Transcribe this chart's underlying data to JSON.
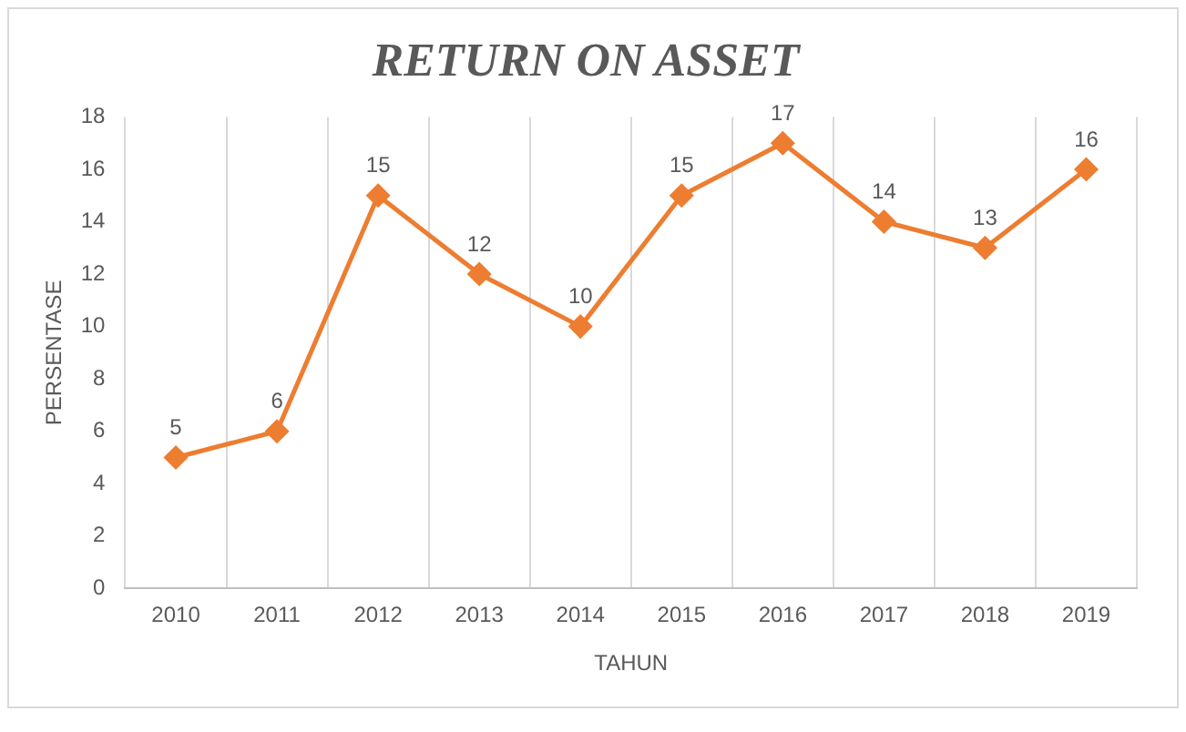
{
  "chart_data": {
    "type": "line",
    "title": "RETURN ON ASSET",
    "xlabel": "TAHUN",
    "ylabel": "PERSENTASE",
    "categories": [
      "2010",
      "2011",
      "2012",
      "2013",
      "2014",
      "2015",
      "2016",
      "2017",
      "2018",
      "2019"
    ],
    "series": [
      {
        "color": "#ed7d31",
        "values": [
          5,
          6,
          15,
          12,
          10,
          15,
          17,
          14,
          13,
          16
        ]
      }
    ],
    "ylim": [
      0,
      18
    ],
    "yticks": [
      0,
      2,
      4,
      6,
      8,
      10,
      12,
      14,
      16,
      18
    ],
    "grid": "x",
    "marker": "diamond",
    "line_style": "solid",
    "data_labels": true,
    "legend": false
  }
}
